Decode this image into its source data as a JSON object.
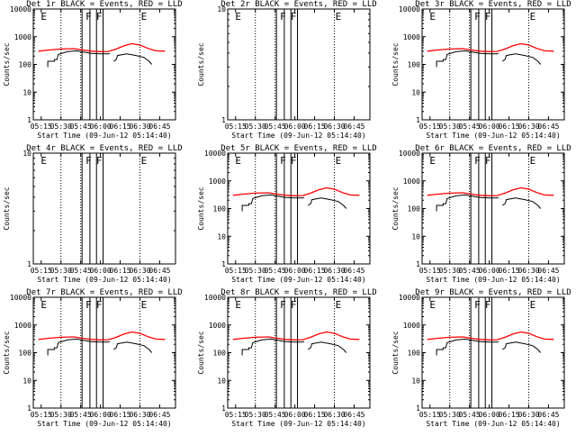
{
  "chart_data": [
    {
      "id": "det1",
      "title": "Det 1r BLACK = Events, RED = LLD",
      "ylabel": "Counts/sec",
      "xlabel": "Start Time (09-Jun-12 05:14:40)",
      "yscale": "log",
      "ylim": [
        1,
        10000
      ],
      "yticks": [
        "1",
        "10",
        "100",
        "1000",
        "10000"
      ],
      "xticks": [
        "05:15",
        "05:30",
        "05:45",
        "06:00",
        "06:15",
        "06:30",
        "06:45"
      ],
      "annotations": [
        "E",
        "F",
        "F",
        "E"
      ],
      "series": [
        {
          "name": "BLACK = Events",
          "color": "#000000"
        },
        {
          "name": "RED = LLD",
          "color": "#ff0000"
        }
      ],
      "has_data": true
    },
    {
      "id": "det2",
      "title": "Det 2r BLACK = Events, RED = LLD",
      "ylabel": "Counts/sec",
      "xlabel": "Start Time (09-Jun-12 05:14:40)",
      "yscale": "log",
      "ylim": [
        1,
        10
      ],
      "yticks": [
        "1",
        "10"
      ],
      "xticks": [
        "05:15",
        "05:30",
        "05:45",
        "06:00",
        "06:15",
        "06:30",
        "06:45"
      ],
      "annotations": [
        "E",
        "F",
        "F",
        "E"
      ],
      "series": [],
      "has_data": false
    },
    {
      "id": "det3",
      "title": "Det 3r BLACK = Events, RED = LLD",
      "ylabel": "Counts/sec",
      "xlabel": "Start Time (09-Jun-12 05:14:40)",
      "yscale": "log",
      "ylim": [
        1,
        10000
      ],
      "yticks": [
        "1",
        "10",
        "100",
        "1000",
        "10000"
      ],
      "xticks": [
        "05:15",
        "05:30",
        "05:45",
        "06:00",
        "06:15",
        "06:30",
        "06:45"
      ],
      "annotations": [
        "E",
        "F",
        "F",
        "E"
      ],
      "series": [
        {
          "name": "BLACK = Events",
          "color": "#000000"
        },
        {
          "name": "RED = LLD",
          "color": "#ff0000"
        }
      ],
      "has_data": true
    },
    {
      "id": "det4",
      "title": "Det 4r BLACK = Events, RED = LLD",
      "ylabel": "Counts/sec",
      "xlabel": "Start Time (09-Jun-12 05:14:40)",
      "yscale": "log",
      "ylim": [
        1,
        10
      ],
      "yticks": [
        "1",
        "10"
      ],
      "xticks": [
        "05:15",
        "05:30",
        "05:45",
        "06:00",
        "06:15",
        "06:30",
        "06:45"
      ],
      "annotations": [
        "E",
        "F",
        "F",
        "E"
      ],
      "series": [],
      "has_data": false
    },
    {
      "id": "det5",
      "title": "Det 5r BLACK = Events, RED = LLD",
      "ylabel": "Counts/sec",
      "xlabel": "Start Time (09-Jun-12 05:14:40)",
      "yscale": "log",
      "ylim": [
        1,
        10000
      ],
      "yticks": [
        "1",
        "10",
        "100",
        "1000",
        "10000"
      ],
      "xticks": [
        "05:15",
        "05:30",
        "05:45",
        "06:00",
        "06:15",
        "06:30",
        "06:45"
      ],
      "annotations": [
        "E",
        "F",
        "F",
        "E"
      ],
      "series": [
        {
          "name": "BLACK = Events",
          "color": "#000000"
        },
        {
          "name": "RED = LLD",
          "color": "#ff0000"
        }
      ],
      "has_data": true
    },
    {
      "id": "det6",
      "title": "Det 6r BLACK = Events, RED = LLD",
      "ylabel": "Counts/sec",
      "xlabel": "Start Time (09-Jun-12 05:14:40)",
      "yscale": "log",
      "ylim": [
        1,
        10000
      ],
      "yticks": [
        "1",
        "10",
        "100",
        "1000",
        "10000"
      ],
      "xticks": [
        "05:15",
        "05:30",
        "05:45",
        "06:00",
        "06:15",
        "06:30",
        "06:45"
      ],
      "annotations": [
        "E",
        "F",
        "F",
        "E"
      ],
      "series": [
        {
          "name": "BLACK = Events",
          "color": "#000000"
        },
        {
          "name": "RED = LLD",
          "color": "#ff0000"
        }
      ],
      "has_data": true
    },
    {
      "id": "det7",
      "title": "Det 7r BLACK = Events, RED = LLD",
      "ylabel": "Counts/sec",
      "xlabel": "Start Time (09-Jun-12 05:14:40)",
      "yscale": "log",
      "ylim": [
        1,
        10000
      ],
      "yticks": [
        "1",
        "10",
        "100",
        "1000",
        "10000"
      ],
      "xticks": [
        "05:15",
        "05:30",
        "05:45",
        "06:00",
        "06:15",
        "06:30",
        "06:45"
      ],
      "annotations": [
        "E",
        "F",
        "F",
        "E"
      ],
      "series": [
        {
          "name": "BLACK = Events",
          "color": "#000000"
        },
        {
          "name": "RED = LLD",
          "color": "#ff0000"
        }
      ],
      "has_data": true
    },
    {
      "id": "det8",
      "title": "Det 8r BLACK = Events, RED = LLD",
      "ylabel": "Counts/sec",
      "xlabel": "Start Time (09-Jun-12 05:14:40)",
      "yscale": "log",
      "ylim": [
        1,
        10000
      ],
      "yticks": [
        "1",
        "10",
        "100",
        "1000",
        "10000"
      ],
      "xticks": [
        "05:15",
        "05:30",
        "05:45",
        "06:00",
        "06:15",
        "06:30",
        "06:45"
      ],
      "annotations": [
        "E",
        "F",
        "F",
        "E"
      ],
      "series": [
        {
          "name": "BLACK = Events",
          "color": "#000000"
        },
        {
          "name": "RED = LLD",
          "color": "#ff0000"
        }
      ],
      "has_data": true
    },
    {
      "id": "det9",
      "title": "Det 9r BLACK = Events, RED = LLD",
      "ylabel": "Counts/sec",
      "xlabel": "Start Time (09-Jun-12 05:14:40)",
      "yscale": "log",
      "ylim": [
        1,
        10000
      ],
      "yticks": [
        "1",
        "10",
        "100",
        "1000",
        "10000"
      ],
      "xticks": [
        "05:15",
        "05:30",
        "05:45",
        "06:00",
        "06:15",
        "06:30",
        "06:45"
      ],
      "annotations": [
        "E",
        "F",
        "F",
        "E"
      ],
      "series": [
        {
          "name": "BLACK = Events",
          "color": "#000000"
        },
        {
          "name": "RED = LLD",
          "color": "#ff0000"
        }
      ],
      "has_data": true
    }
  ]
}
